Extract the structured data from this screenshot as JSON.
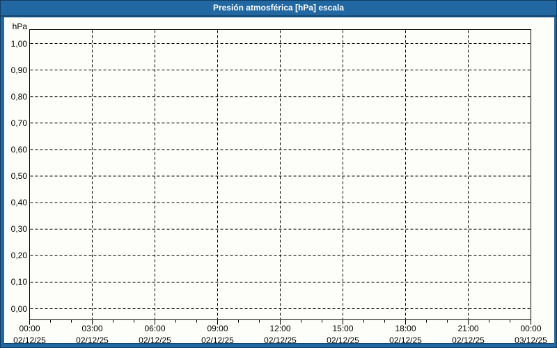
{
  "window": {
    "title": "Presión atmosférica [hPa] escala"
  },
  "colors": {
    "frame": "#2168a3",
    "frame_edge": "#14466e",
    "content_bg": "#fdfefa",
    "grid": "#000000",
    "label_text": "#000000",
    "title_text": "#ffffff"
  },
  "chart_data": {
    "type": "line",
    "title": "Presión atmosférica [hPa] escala",
    "ylabel": "hPa",
    "xlabel": "",
    "ylim": [
      0.0,
      1.0
    ],
    "y_tick_labels": [
      "1,00",
      "0,90",
      "0,80",
      "0,70",
      "0,60",
      "0,50",
      "0,40",
      "0,30",
      "0,20",
      "0,10",
      "0,00"
    ],
    "y_tick_values": [
      1.0,
      0.9,
      0.8,
      0.7,
      0.6,
      0.5,
      0.4,
      0.3,
      0.2,
      0.1,
      0.0
    ],
    "x_ticks": [
      {
        "time": "00:00",
        "date": "02/12/25"
      },
      {
        "time": "03:00",
        "date": "02/12/25"
      },
      {
        "time": "06:00",
        "date": "02/12/25"
      },
      {
        "time": "09:00",
        "date": "02/12/25"
      },
      {
        "time": "12:00",
        "date": "02/12/25"
      },
      {
        "time": "15:00",
        "date": "02/12/25"
      },
      {
        "time": "18:00",
        "date": "02/12/25"
      },
      {
        "time": "21:00",
        "date": "02/12/25"
      },
      {
        "time": "00:00",
        "date": "03/12/25"
      }
    ],
    "x_minor_ticks_per_interval": 2,
    "grid": "dashed",
    "legend": null,
    "series": []
  }
}
